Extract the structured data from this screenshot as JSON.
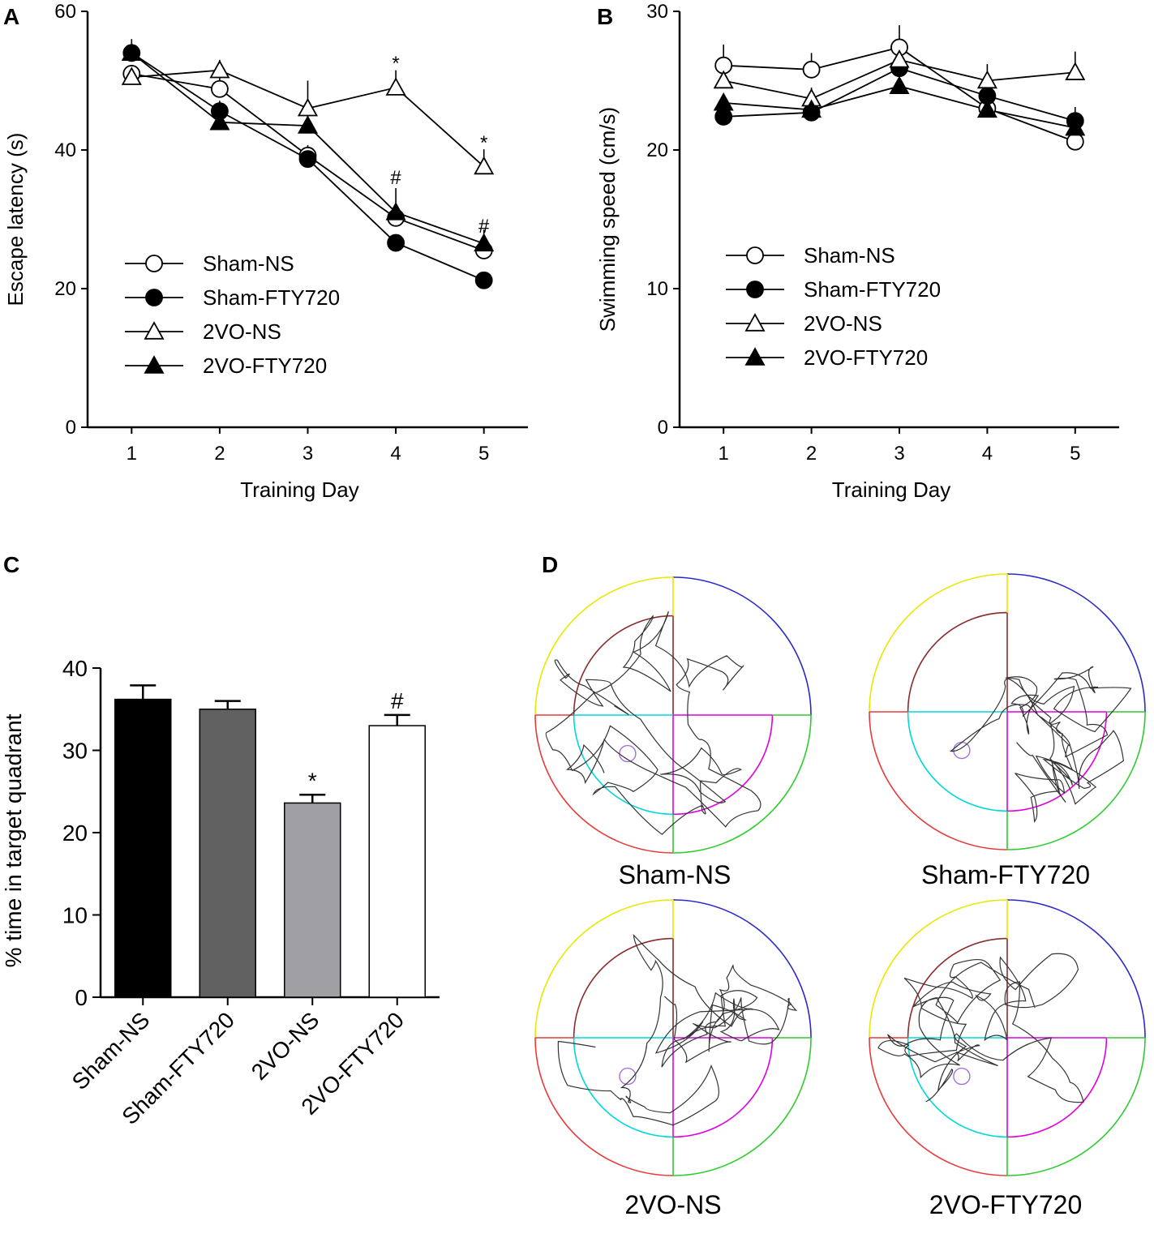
{
  "panels": {
    "A": "A",
    "B": "B",
    "C": "C",
    "D": "D"
  },
  "maze": {
    "labels": [
      "Sham-NS",
      "Sham-FTY720",
      "2VO-NS",
      "2VO-FTY720"
    ],
    "quadrant_colors": [
      "#e8e800",
      "#2a2acc",
      "#e83a3a",
      "#2ecc2e"
    ],
    "inner_colors": [
      "#8a2c2c",
      "#e000e0",
      "#00d8d8"
    ],
    "trace_color": "#333333",
    "platform_color": "#a070e0"
  },
  "chart_data": [
    {
      "type": "line",
      "panel": "A",
      "xlabel": "Training Day",
      "ylabel": "Escape latency (s)",
      "x": [
        1,
        2,
        3,
        4,
        5
      ],
      "xlim": [
        0.5,
        5.5
      ],
      "ylim": [
        0,
        60
      ],
      "yticks": [
        0,
        20,
        40,
        60
      ],
      "legend": "center-left",
      "grid": false,
      "series": [
        {
          "name": "Sham-NS",
          "marker": "circle-open",
          "values": [
            51,
            48.8,
            39.2,
            30.2,
            25.5
          ],
          "error": [
            0,
            2,
            1.5,
            1.5,
            1.5
          ]
        },
        {
          "name": "Sham-FTY720",
          "marker": "circle-filled",
          "values": [
            54,
            45.6,
            38.7,
            26.6,
            21.2
          ],
          "error": [
            1,
            1.5,
            1,
            1,
            0.8
          ]
        },
        {
          "name": "2VO-NS",
          "marker": "triangle-open",
          "values": [
            50.5,
            51.5,
            46,
            49,
            37.6
          ],
          "error": [
            1,
            1.5,
            4,
            2.5,
            2.5
          ]
        },
        {
          "name": "2VO-FTY720",
          "marker": "triangle-filled",
          "values": [
            54,
            44,
            43.5,
            31,
            26.5
          ],
          "error": [
            2,
            1.5,
            2,
            3.5,
            2
          ]
        }
      ],
      "annotations": [
        {
          "x": 4,
          "y": 53,
          "text": "*"
        },
        {
          "x": 5,
          "y": 41.5,
          "text": "*"
        },
        {
          "x": 4,
          "y": 36.5,
          "text": "#"
        },
        {
          "x": 5,
          "y": 29.5,
          "text": "#"
        }
      ]
    },
    {
      "type": "line",
      "panel": "B",
      "xlabel": "Training Day",
      "ylabel": "Swimming speed (cm/s)",
      "x": [
        1,
        2,
        3,
        4,
        5
      ],
      "xlim": [
        0.5,
        5.5
      ],
      "ylim": [
        0,
        30
      ],
      "yticks": [
        0,
        10,
        20,
        30
      ],
      "legend": "center-left",
      "grid": false,
      "series": [
        {
          "name": "Sham-NS",
          "marker": "circle-open",
          "values": [
            26.1,
            25.8,
            27.4,
            23,
            20.6
          ],
          "error": [
            1.5,
            1.2,
            1.6,
            1,
            0.6
          ]
        },
        {
          "name": "Sham-FTY720",
          "marker": "circle-filled",
          "values": [
            22.4,
            22.7,
            25.9,
            23.9,
            22.1
          ],
          "error": [
            0.4,
            0.4,
            0.8,
            0.6,
            1
          ]
        },
        {
          "name": "2VO-NS",
          "marker": "triangle-open",
          "values": [
            25,
            23.7,
            26.5,
            25,
            25.6
          ],
          "error": [
            1.2,
            0.8,
            1.2,
            1.2,
            1.5
          ]
        },
        {
          "name": "2VO-FTY720",
          "marker": "triangle-filled",
          "values": [
            23.4,
            22.9,
            24.6,
            22.9,
            21.6
          ],
          "error": [
            0.5,
            0.5,
            0.8,
            0.5,
            0.5
          ]
        }
      ]
    },
    {
      "type": "bar",
      "panel": "C",
      "ylabel": "% time in target quadrant",
      "categories": [
        "Sham-NS",
        "Sham-FTY720",
        "2VO-NS",
        "2VO-FTY720"
      ],
      "values": [
        36.2,
        35,
        23.6,
        33
      ],
      "error": [
        1.7,
        1,
        1,
        1.3
      ],
      "colors": [
        "#000000",
        "#606060",
        "#a0a0a4",
        "#ffffff"
      ],
      "ylim": [
        0,
        40
      ],
      "yticks": [
        0,
        10,
        20,
        30,
        40
      ],
      "annotations": [
        {
          "category": "2VO-NS",
          "text": "*"
        },
        {
          "category": "2VO-FTY720",
          "text": "#"
        }
      ]
    }
  ]
}
